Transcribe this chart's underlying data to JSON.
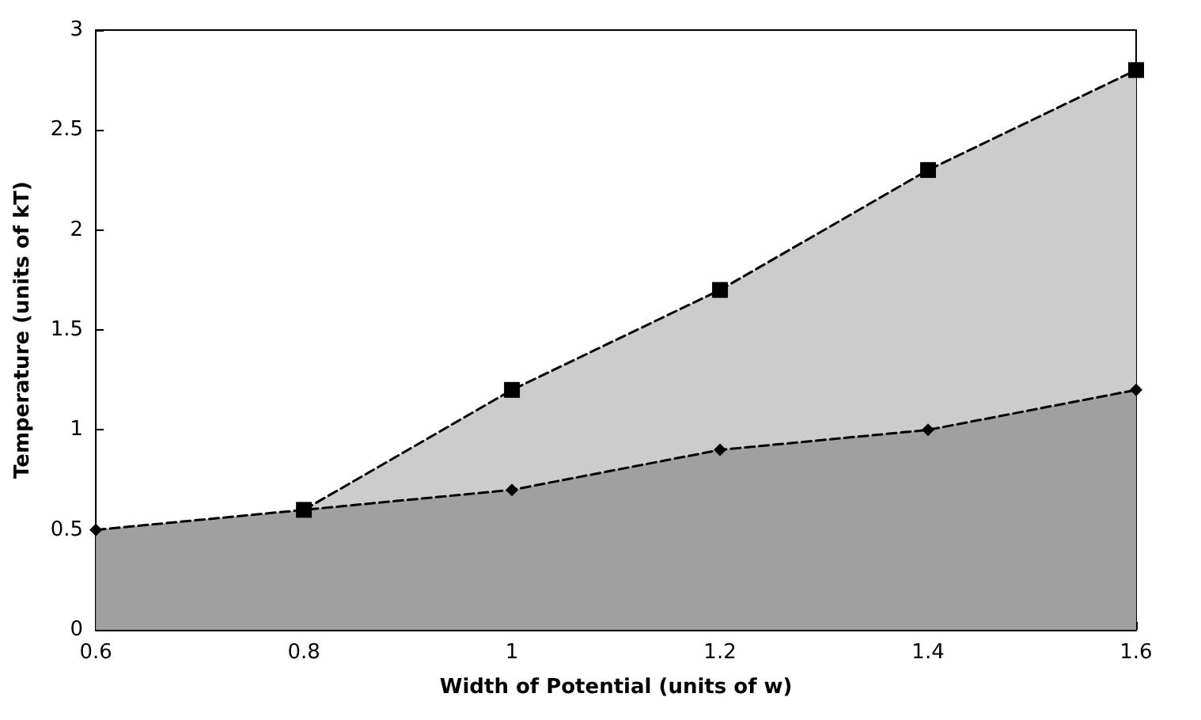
{
  "chart_data": {
    "type": "area",
    "xlabel": "Width of Potential (units of w)",
    "ylabel": "Temperature (units of kT)",
    "series": [
      {
        "color": "#cccccc",
        "marker": "square",
        "x": [
          0.8,
          1.0,
          1.2,
          1.4,
          1.6
        ],
        "values": [
          0.6,
          1.2,
          1.7,
          2.3,
          2.8
        ]
      },
      {
        "color": "#a0a0a0",
        "marker": "diamond",
        "x": [
          0.6,
          0.8,
          1.0,
          1.2,
          1.4,
          1.6
        ],
        "values": [
          0.5,
          0.6,
          0.7,
          0.9,
          1.0,
          1.2
        ]
      }
    ],
    "line_style": "dashed",
    "grid": false,
    "xlim": [
      0.6,
      1.6
    ],
    "xticks": [
      0.6,
      0.8,
      1,
      1.2,
      1.4,
      1.6
    ],
    "ylim": [
      0,
      3
    ],
    "yticks": [
      0,
      0.5,
      1,
      1.5,
      2,
      2.5,
      3
    ]
  }
}
